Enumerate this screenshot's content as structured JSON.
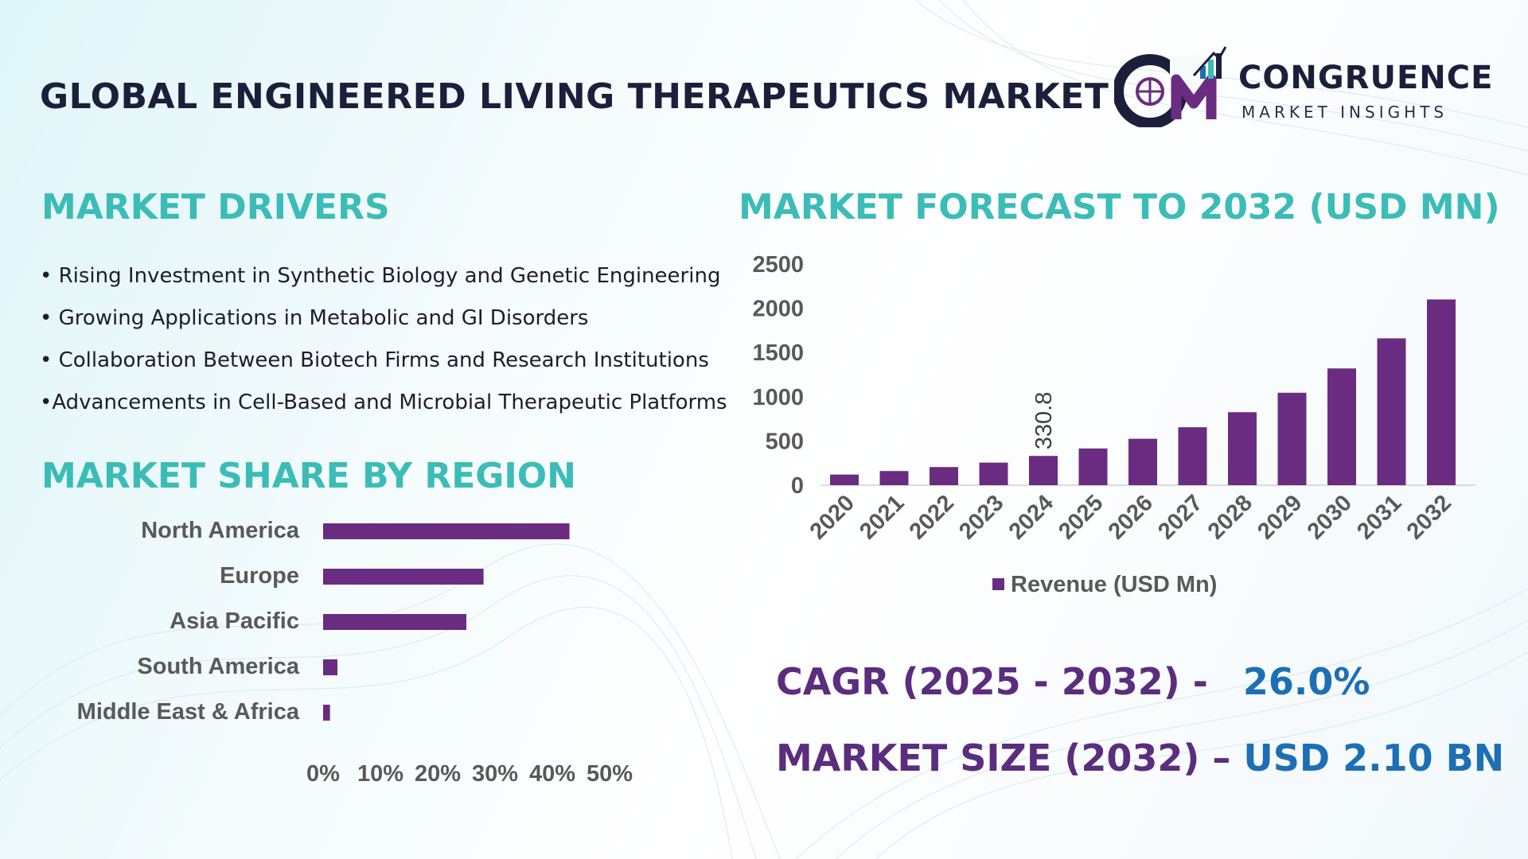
{
  "header": {
    "title": "GLOBAL ENGINEERED LIVING THERAPEUTICS MARKET",
    "logo_mark": "CM",
    "logo_name": "CONGRUENCE",
    "logo_tagline": "MARKET INSIGHTS"
  },
  "drivers": {
    "heading": "MARKET DRIVERS",
    "items": [
      "• Rising Investment in Synthetic Biology and Genetic Engineering",
      "• Growing Applications in Metabolic and GI Disorders",
      "• Collaboration Between Biotech Firms and Research Institutions",
      "•Advancements in Cell-Based and Microbial Therapeutic Platforms"
    ]
  },
  "region": {
    "heading": "MARKET SHARE BY REGION"
  },
  "forecast": {
    "heading": "MARKET FORECAST TO 2032 (USD MN)"
  },
  "stats": {
    "cagr_label": "CAGR (2025 - 2032) -",
    "cagr_value": "26.0%",
    "size_label": "MARKET SIZE (2032) –",
    "size_value": "USD 2.10 BN"
  },
  "colors": {
    "bar": "#6a2c81",
    "accent": "#3bbcb7",
    "stat_label": "#5b2d7e",
    "stat_value": "#1d6fb5"
  },
  "chart_data": [
    {
      "type": "bar",
      "orientation": "horizontal",
      "categories": [
        "North America",
        "Europe",
        "Asia Pacific",
        "South America",
        "Middle East & Africa"
      ],
      "values": [
        43,
        28,
        25,
        2.5,
        1.2
      ],
      "xticks": [
        "0%",
        "10%",
        "20%",
        "30%",
        "40%",
        "50%"
      ],
      "xlim": [
        0,
        50
      ],
      "grid": false
    },
    {
      "type": "bar",
      "categories": [
        "2020",
        "2021",
        "2022",
        "2023",
        "2024",
        "2025",
        "2026",
        "2027",
        "2028",
        "2029",
        "2030",
        "2031",
        "2032"
      ],
      "series": [
        {
          "name": "Revenue (USD Mn)",
          "values": [
            120,
            160,
            205,
            255,
            330.8,
            415,
            525,
            655,
            825,
            1045,
            1320,
            1660,
            2100
          ]
        }
      ],
      "data_labels": [
        {
          "index": 4,
          "text": "330.8"
        }
      ],
      "yticks": [
        "0",
        "500",
        "1000",
        "1500",
        "2000",
        "2500"
      ],
      "ylim": [
        0,
        2500
      ],
      "legend": "bottom",
      "grid": false
    }
  ]
}
